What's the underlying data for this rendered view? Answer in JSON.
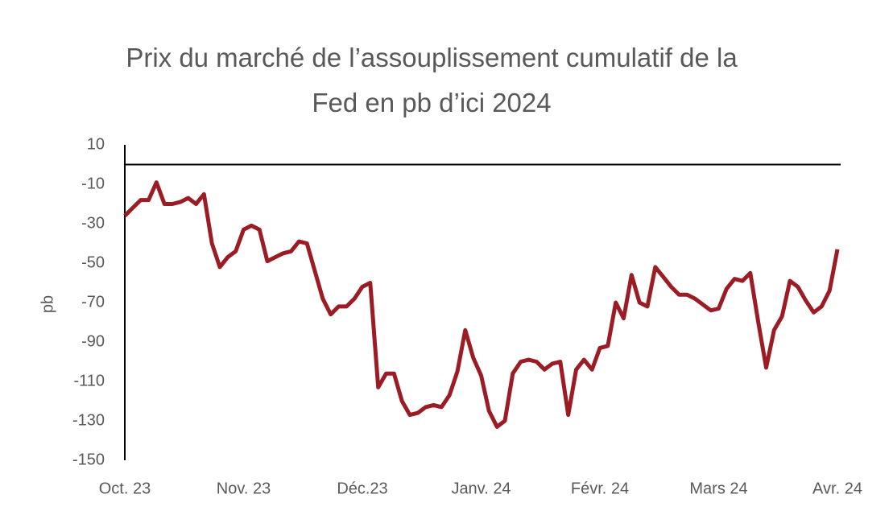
{
  "chart_data": {
    "type": "line",
    "title": "Prix du marché de l’assouplissement cumulatif de la\nFed en pb d’ici 2024",
    "y_label": "pb",
    "categories": [
      "Oct. 23",
      null,
      null,
      null,
      null,
      null,
      null,
      null,
      null,
      null,
      null,
      null,
      null,
      null,
      null,
      "Nov. 23",
      null,
      null,
      null,
      null,
      null,
      null,
      null,
      null,
      null,
      null,
      null,
      null,
      null,
      null,
      "Déc.23",
      null,
      null,
      null,
      null,
      null,
      null,
      null,
      null,
      null,
      null,
      null,
      null,
      null,
      null,
      "Janv. 24",
      null,
      null,
      null,
      null,
      null,
      null,
      null,
      null,
      null,
      null,
      null,
      null,
      null,
      null,
      "Févr. 24",
      null,
      null,
      null,
      null,
      null,
      null,
      null,
      null,
      null,
      null,
      null,
      null,
      null,
      null,
      "Mars 24",
      null,
      null,
      null,
      null,
      null,
      null,
      null,
      null,
      null,
      null,
      null,
      null,
      null,
      null,
      "Avr. 24"
    ],
    "series": [
      {
        "name": "Prix du marché",
        "color": "#9b1c24",
        "values": [
          -26,
          -22,
          -18,
          -18,
          -9,
          -20,
          -20,
          -19,
          -17,
          -20,
          -15,
          -40,
          -52,
          -47,
          -44,
          -33,
          -31,
          -33,
          -49,
          -47,
          -45,
          -44,
          -39,
          -40,
          -54,
          -68,
          -76,
          -72,
          -72,
          -68,
          -62,
          -60,
          -113,
          -106,
          -106,
          -120,
          -127,
          -126,
          -123,
          -122,
          -123,
          -117,
          -105,
          -84,
          -98,
          -107,
          -125,
          -133,
          -130,
          -106,
          -100,
          -99,
          -100,
          -104,
          -101,
          -100,
          -127,
          -104,
          -99,
          -104,
          -93,
          -92,
          -70,
          -78,
          -56,
          -70,
          -72,
          -52,
          -57,
          -62,
          -66,
          -66,
          -68,
          -71,
          -74,
          -73,
          -63,
          -58,
          -59,
          -55,
          -80,
          -103,
          -84,
          -77,
          -59,
          -62,
          -69,
          -75,
          -72,
          -64,
          -43
        ]
      }
    ],
    "ylim": [
      -150,
      10
    ],
    "yticks": [
      10,
      -10,
      -30,
      -50,
      -70,
      -90,
      -110,
      -130,
      -150
    ],
    "grid": false
  }
}
